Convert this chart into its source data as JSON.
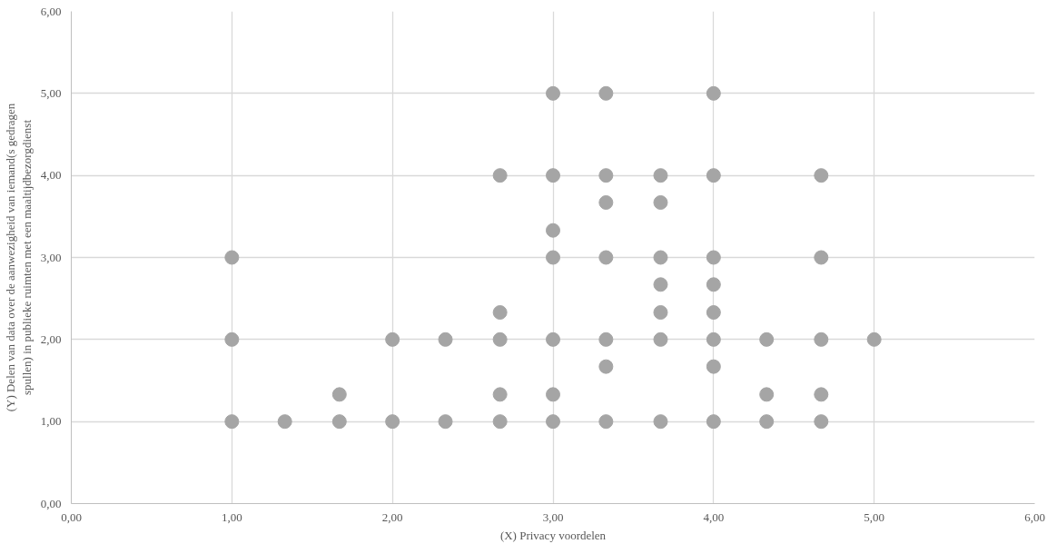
{
  "chart_data": {
    "type": "scatter",
    "xlabel": "(X) Privacy voordelen",
    "ylabel": "(Y) Delen van data over de aanwezigheid van iemand(s gedragen spullen) in publieke ruimten met een maaltijdbezorgdienst",
    "x": [
      1,
      1,
      1,
      1.33,
      1.67,
      1.67,
      2,
      2,
      2.33,
      2.33,
      2.67,
      2.67,
      2.67,
      2.67,
      2.67,
      3,
      3,
      3,
      3,
      3,
      3,
      3,
      3.33,
      3.33,
      3.33,
      3.33,
      3.33,
      3.33,
      3.33,
      3.67,
      3.67,
      3.67,
      3.67,
      3.67,
      3.67,
      3.67,
      4,
      4,
      4,
      4,
      4,
      4,
      4,
      4,
      4.33,
      4.33,
      4.33,
      4.67,
      4.67,
      4.67,
      4.67,
      4.67,
      5
    ],
    "values": [
      1,
      2,
      3,
      1,
      1,
      1.33,
      1,
      2,
      1,
      2,
      1,
      1.33,
      2,
      2.33,
      4,
      1,
      1.33,
      2,
      3,
      3.33,
      4,
      5,
      1,
      1.67,
      2,
      3,
      3.67,
      4,
      5,
      1,
      2,
      2.33,
      2.67,
      3,
      3.67,
      4,
      1,
      1.67,
      2,
      2.33,
      2.67,
      3,
      4,
      5,
      1,
      1.33,
      2,
      1,
      1.33,
      2,
      3,
      4,
      2
    ],
    "color": "#a5a5a5",
    "marker": "circle",
    "grid": true,
    "xlim": [
      0,
      6
    ],
    "ylim": [
      0,
      6
    ],
    "xticks": [
      {
        "value": 0,
        "label": "0,00"
      },
      {
        "value": 1,
        "label": "1,00"
      },
      {
        "value": 2,
        "label": "2,00"
      },
      {
        "value": 3,
        "label": "3,00"
      },
      {
        "value": 4,
        "label": "4,00"
      },
      {
        "value": 5,
        "label": "5,00"
      },
      {
        "value": 6,
        "label": "6,00"
      }
    ],
    "yticks": [
      {
        "value": 0,
        "label": "0,00"
      },
      {
        "value": 1,
        "label": "1,00"
      },
      {
        "value": 2,
        "label": "2,00"
      },
      {
        "value": 3,
        "label": "3,00"
      },
      {
        "value": 4,
        "label": "4,00"
      },
      {
        "value": 5,
        "label": "5,00"
      },
      {
        "value": 6,
        "label": "6,00"
      }
    ]
  }
}
